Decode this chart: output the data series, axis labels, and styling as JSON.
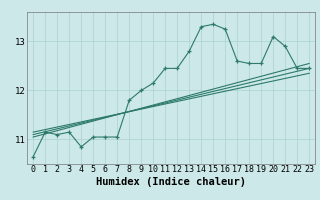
{
  "xlabel": "Humidex (Indice chaleur)",
  "ylabel": "",
  "bg_color": "#cce8e8",
  "line_color": "#2d7a6a",
  "xlim": [
    -0.5,
    23.5
  ],
  "ylim": [
    10.5,
    13.6
  ],
  "yticks": [
    11,
    12,
    13
  ],
  "xticks": [
    0,
    1,
    2,
    3,
    4,
    5,
    6,
    7,
    8,
    9,
    10,
    11,
    12,
    13,
    14,
    15,
    16,
    17,
    18,
    19,
    20,
    21,
    22,
    23
  ],
  "main_x": [
    0,
    1,
    2,
    3,
    4,
    5,
    6,
    7,
    8,
    9,
    10,
    11,
    12,
    13,
    14,
    15,
    16,
    17,
    18,
    19,
    20,
    21,
    22,
    23
  ],
  "main_y": [
    10.65,
    11.15,
    11.1,
    11.15,
    10.85,
    11.05,
    11.05,
    11.05,
    11.8,
    12.0,
    12.15,
    12.45,
    12.45,
    12.8,
    13.3,
    13.35,
    13.25,
    12.6,
    12.55,
    12.55,
    13.1,
    12.9,
    12.45,
    12.45
  ],
  "trend1_x": [
    0,
    23
  ],
  "trend1_y": [
    11.05,
    12.55
  ],
  "trend2_x": [
    0,
    23
  ],
  "trend2_y": [
    11.1,
    12.45
  ],
  "trend3_x": [
    0,
    23
  ],
  "trend3_y": [
    11.15,
    12.35
  ],
  "grid_color": "#aad0d0",
  "tick_fontsize": 6,
  "label_fontsize": 7.5
}
